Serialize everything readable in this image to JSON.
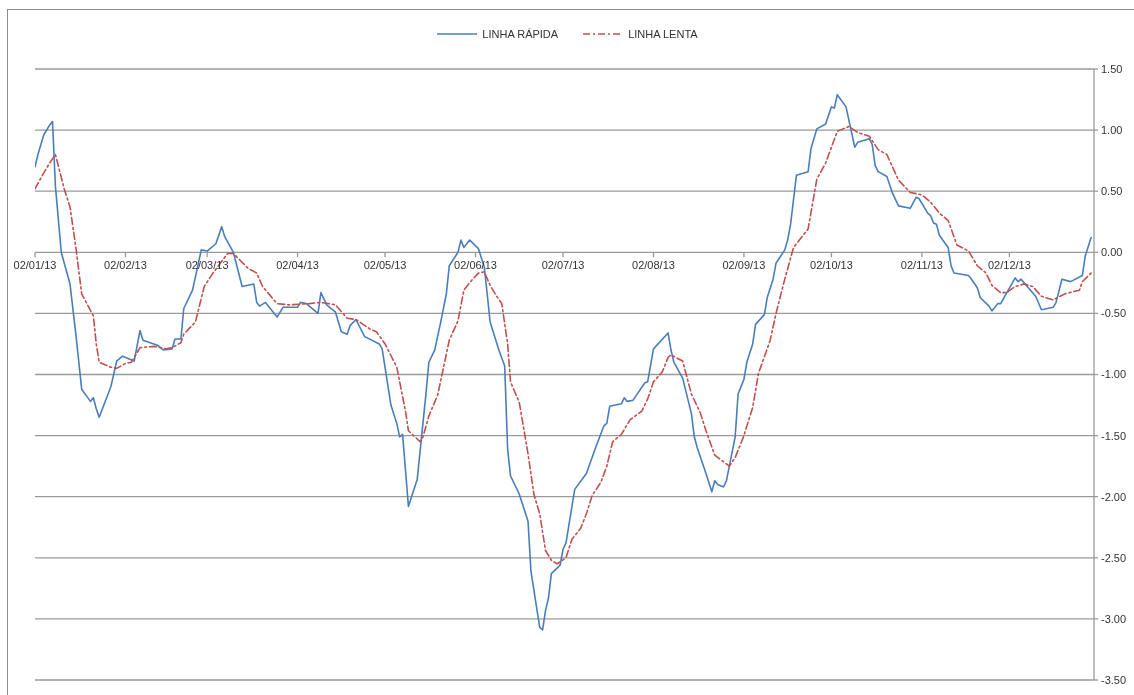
{
  "chart_data": {
    "type": "line",
    "legend": "top",
    "grid": "y",
    "xlim": [
      "2013-01-02",
      "2013-12-31"
    ],
    "xticks": [
      {
        "value": "2013-01-02",
        "label": "02/01/13"
      },
      {
        "value": "2013-02-02",
        "label": "02/02/13"
      },
      {
        "value": "2013-03-02",
        "label": "02/03/13"
      },
      {
        "value": "2013-04-02",
        "label": "02/04/13"
      },
      {
        "value": "2013-05-02",
        "label": "02/05/13"
      },
      {
        "value": "2013-06-02",
        "label": "02/06/13"
      },
      {
        "value": "2013-07-02",
        "label": "02/07/13"
      },
      {
        "value": "2013-08-02",
        "label": "02/08/13"
      },
      {
        "value": "2013-09-02",
        "label": "02/09/13"
      },
      {
        "value": "2013-10-02",
        "label": "02/10/13"
      },
      {
        "value": "2013-11-02",
        "label": "02/11/13"
      },
      {
        "value": "2013-12-02",
        "label": "02/12/13"
      }
    ],
    "ylim": [
      -3.5,
      1.5
    ],
    "yticks": [
      {
        "value": -3.5,
        "label": "-3.50"
      },
      {
        "value": -3,
        "label": "-3.00"
      },
      {
        "value": -2.5,
        "label": "-2.50"
      },
      {
        "value": -2,
        "label": "-2.00"
      },
      {
        "value": -1.5,
        "label": "-1.50"
      },
      {
        "value": -1,
        "label": "-1.00"
      },
      {
        "value": -0.5,
        "label": "-0.50"
      },
      {
        "value": 0,
        "label": "0.00"
      },
      {
        "value": 0.5,
        "label": "0.50"
      },
      {
        "value": 1,
        "label": "1.00"
      },
      {
        "value": 1.5,
        "label": "1.50"
      }
    ],
    "series": [
      {
        "name": "LINHA RÁPIDA",
        "color": "#4a7ebb",
        "line_style": "solid",
        "x": [
          "2013-01-02",
          "2013-01-03",
          "2013-01-05",
          "2013-01-07",
          "2013-01-08",
          "2013-01-09",
          "2013-01-11",
          "2013-01-14",
          "2013-01-16",
          "2013-01-18",
          "2013-01-21",
          "2013-01-22",
          "2013-01-23",
          "2013-01-24",
          "2013-01-28",
          "2013-01-30",
          "2013-02-01",
          "2013-02-05",
          "2013-02-07",
          "2013-02-08",
          "2013-02-13",
          "2013-02-15",
          "2013-02-18",
          "2013-02-19",
          "2013-02-21",
          "2013-02-22",
          "2013-02-25",
          "2013-02-28",
          "2013-03-02",
          "2013-03-05",
          "2013-03-07",
          "2013-03-08",
          "2013-03-11",
          "2013-03-14",
          "2013-03-18",
          "2013-03-19",
          "2013-03-20",
          "2013-03-22",
          "2013-03-26",
          "2013-03-28",
          "2013-04-02",
          "2013-04-03",
          "2013-04-05",
          "2013-04-09",
          "2013-04-10",
          "2013-04-12",
          "2013-04-15",
          "2013-04-17",
          "2013-04-19",
          "2013-04-20",
          "2013-04-22",
          "2013-04-25",
          "2013-04-30",
          "2013-05-01",
          "2013-05-04",
          "2013-05-06",
          "2013-05-07",
          "2013-05-08",
          "2013-05-10",
          "2013-05-13",
          "2013-05-16",
          "2013-05-17",
          "2013-05-19",
          "2013-05-21",
          "2013-05-23",
          "2013-05-24",
          "2013-05-27",
          "2013-05-28",
          "2013-05-29",
          "2013-05-31",
          "2013-06-03",
          "2013-06-05",
          "2013-06-06",
          "2013-06-07",
          "2013-06-10",
          "2013-06-12",
          "2013-06-13",
          "2013-06-14",
          "2013-06-17",
          "2013-06-20",
          "2013-06-21",
          "2013-06-24",
          "2013-06-25",
          "2013-06-26",
          "2013-06-27",
          "2013-06-28",
          "2013-07-01",
          "2013-07-02",
          "2013-07-03",
          "2013-07-06",
          "2013-07-10",
          "2013-07-13",
          "2013-07-16",
          "2013-07-17",
          "2013-07-18",
          "2013-07-22",
          "2013-07-23",
          "2013-07-24",
          "2013-07-26",
          "2013-07-30",
          "2013-07-31",
          "2013-08-02",
          "2013-08-07",
          "2013-08-08",
          "2013-08-09",
          "2013-08-12",
          "2013-08-15",
          "2013-08-16",
          "2013-08-17",
          "2013-08-20",
          "2013-08-22",
          "2013-08-23",
          "2013-08-24",
          "2013-08-26",
          "2013-08-27",
          "2013-08-30",
          "2013-08-31",
          "2013-09-02",
          "2013-09-03",
          "2013-09-05",
          "2013-09-06",
          "2013-09-09",
          "2013-09-10",
          "2013-09-12",
          "2013-09-13",
          "2013-09-16",
          "2013-09-17",
          "2013-09-18",
          "2013-09-20",
          "2013-09-24",
          "2013-09-25",
          "2013-09-27",
          "2013-09-30",
          "2013-10-02",
          "2013-10-03",
          "2013-10-04",
          "2013-10-07",
          "2013-10-10",
          "2013-10-11",
          "2013-10-15",
          "2013-10-16",
          "2013-10-17",
          "2013-10-18",
          "2013-10-21",
          "2013-10-23",
          "2013-10-25",
          "2013-10-29",
          "2013-10-31",
          "2013-11-01",
          "2013-11-04",
          "2013-11-05",
          "2013-11-06",
          "2013-11-07",
          "2013-11-08",
          "2013-11-11",
          "2013-11-12",
          "2013-11-13",
          "2013-11-18",
          "2013-11-19",
          "2013-11-21",
          "2013-11-22",
          "2013-11-25",
          "2013-11-26",
          "2013-11-28",
          "2013-11-29",
          "2013-12-04",
          "2013-12-05",
          "2013-12-06",
          "2013-12-11",
          "2013-12-13",
          "2013-12-17",
          "2013-12-18",
          "2013-12-20",
          "2013-12-23",
          "2013-12-27",
          "2013-12-28",
          "2013-12-30"
        ],
        "values": [
          0.7,
          0.8,
          0.96,
          1.04,
          1.07,
          0.54,
          0.0,
          -0.26,
          -0.67,
          -1.12,
          -1.22,
          -1.19,
          -1.28,
          -1.35,
          -1.1,
          -0.89,
          -0.85,
          -0.89,
          -0.64,
          -0.72,
          -0.76,
          -0.8,
          -0.79,
          -0.71,
          -0.71,
          -0.46,
          -0.31,
          0.02,
          0.01,
          0.07,
          0.21,
          0.13,
          0.0,
          -0.28,
          -0.26,
          -0.41,
          -0.44,
          -0.41,
          -0.53,
          -0.45,
          -0.45,
          -0.41,
          -0.42,
          -0.5,
          -0.33,
          -0.43,
          -0.49,
          -0.65,
          -0.67,
          -0.6,
          -0.55,
          -0.69,
          -0.75,
          -0.79,
          -1.25,
          -1.4,
          -1.51,
          -1.49,
          -2.08,
          -1.86,
          -1.16,
          -0.9,
          -0.8,
          -0.58,
          -0.34,
          -0.11,
          0.0,
          0.1,
          0.04,
          0.1,
          0.03,
          -0.12,
          -0.34,
          -0.57,
          -0.8,
          -0.93,
          -1.61,
          -1.83,
          -1.98,
          -2.2,
          -2.61,
          -3.07,
          -3.09,
          -2.93,
          -2.83,
          -2.63,
          -2.56,
          -2.43,
          -2.38,
          -1.94,
          -1.81,
          -1.61,
          -1.42,
          -1.4,
          -1.26,
          -1.24,
          -1.19,
          -1.22,
          -1.21,
          -1.07,
          -1.06,
          -0.79,
          -0.66,
          -0.8,
          -0.9,
          -1.03,
          -1.32,
          -1.51,
          -1.6,
          -1.81,
          -1.96,
          -1.87,
          -1.9,
          -1.92,
          -1.87,
          -1.51,
          -1.16,
          -1.04,
          -0.9,
          -0.75,
          -0.59,
          -0.51,
          -0.37,
          -0.22,
          -0.09,
          0.02,
          0.1,
          0.23,
          0.63,
          0.66,
          0.85,
          1.01,
          1.05,
          1.19,
          1.18,
          1.29,
          1.19,
          0.86,
          0.9,
          0.93,
          0.88,
          0.71,
          0.66,
          0.62,
          0.48,
          0.38,
          0.36,
          0.45,
          0.44,
          0.32,
          0.3,
          0.24,
          0.23,
          0.14,
          0.04,
          -0.11,
          -0.17,
          -0.19,
          -0.22,
          -0.29,
          -0.37,
          -0.44,
          -0.48,
          -0.42,
          -0.42,
          -0.21,
          -0.24,
          -0.22,
          -0.36,
          -0.47,
          -0.45,
          -0.41,
          -0.22,
          -0.24,
          -0.19,
          -0.03,
          0.12
        ]
      },
      {
        "name": "LINHA LENTA",
        "color": "#c0504d",
        "line_style": "dashed",
        "x": [
          "2013-01-02",
          "2013-01-05",
          "2013-01-07",
          "2013-01-09",
          "2013-01-12",
          "2013-01-14",
          "2013-01-16",
          "2013-01-18",
          "2013-01-22",
          "2013-01-23",
          "2013-01-24",
          "2013-01-28",
          "2013-01-30",
          "2013-02-02",
          "2013-02-04",
          "2013-02-07",
          "2013-02-12",
          "2013-02-16",
          "2013-02-18",
          "2013-02-21",
          "2013-02-22",
          "2013-02-26",
          "2013-03-01",
          "2013-03-04",
          "2013-03-09",
          "2013-03-11",
          "2013-03-16",
          "2013-03-19",
          "2013-03-21",
          "2013-03-26",
          "2013-03-30",
          "2013-04-06",
          "2013-04-10",
          "2013-04-15",
          "2013-04-19",
          "2013-04-22",
          "2013-04-27",
          "2013-04-29",
          "2013-05-02",
          "2013-05-06",
          "2013-05-09",
          "2013-05-10",
          "2013-05-14",
          "2013-05-15",
          "2013-05-17",
          "2013-05-20",
          "2013-05-24",
          "2013-05-27",
          "2013-05-29",
          "2013-06-01",
          "2013-06-03",
          "2013-06-05",
          "2013-06-07",
          "2013-06-09",
          "2013-06-11",
          "2013-06-13",
          "2013-06-14",
          "2013-06-17",
          "2013-06-20",
          "2013-06-22",
          "2013-06-24",
          "2013-06-26",
          "2013-06-28",
          "2013-06-30",
          "2013-07-03",
          "2013-07-05",
          "2013-07-08",
          "2013-07-10",
          "2013-07-12",
          "2013-07-15",
          "2013-07-17",
          "2013-07-19",
          "2013-07-22",
          "2013-07-25",
          "2013-07-29",
          "2013-07-31",
          "2013-08-02",
          "2013-08-05",
          "2013-08-07",
          "2013-08-08",
          "2013-08-12",
          "2013-08-15",
          "2013-08-18",
          "2013-08-20",
          "2013-08-23",
          "2013-08-28",
          "2013-08-30",
          "2013-09-02",
          "2013-09-05",
          "2013-09-07",
          "2013-09-11",
          "2013-09-13",
          "2013-09-16",
          "2013-09-19",
          "2013-09-24",
          "2013-09-27",
          "2013-09-30",
          "2013-10-04",
          "2013-10-08",
          "2013-10-11",
          "2013-10-15",
          "2013-10-18",
          "2013-10-21",
          "2013-10-25",
          "2013-10-29",
          "2013-11-02",
          "2013-11-05",
          "2013-11-08",
          "2013-11-11",
          "2013-11-14",
          "2013-11-18",
          "2013-11-21",
          "2013-11-24",
          "2013-11-26",
          "2013-11-29",
          "2013-12-01",
          "2013-12-04",
          "2013-12-07",
          "2013-12-10",
          "2013-12-13",
          "2013-12-17",
          "2013-12-21",
          "2013-12-26",
          "2013-12-27",
          "2013-12-30"
        ],
        "values": [
          0.52,
          0.65,
          0.73,
          0.8,
          0.52,
          0.37,
          0.04,
          -0.34,
          -0.52,
          -0.75,
          -0.9,
          -0.94,
          -0.95,
          -0.91,
          -0.9,
          -0.78,
          -0.77,
          -0.79,
          -0.78,
          -0.74,
          -0.67,
          -0.57,
          -0.28,
          -0.17,
          -0.01,
          -0.01,
          -0.13,
          -0.17,
          -0.28,
          -0.42,
          -0.43,
          -0.42,
          -0.41,
          -0.43,
          -0.54,
          -0.55,
          -0.63,
          -0.65,
          -0.75,
          -0.94,
          -1.3,
          -1.46,
          -1.55,
          -1.51,
          -1.34,
          -1.17,
          -0.72,
          -0.56,
          -0.31,
          -0.22,
          -0.17,
          -0.16,
          -0.27,
          -0.35,
          -0.42,
          -0.75,
          -1.06,
          -1.23,
          -1.65,
          -1.98,
          -2.14,
          -2.44,
          -2.52,
          -2.55,
          -2.5,
          -2.35,
          -2.26,
          -2.14,
          -1.99,
          -1.88,
          -1.75,
          -1.55,
          -1.49,
          -1.37,
          -1.3,
          -1.2,
          -1.06,
          -0.98,
          -0.86,
          -0.84,
          -0.89,
          -1.16,
          -1.31,
          -1.46,
          -1.66,
          -1.75,
          -1.68,
          -1.5,
          -1.27,
          -0.99,
          -0.72,
          -0.5,
          -0.22,
          0.04,
          0.19,
          0.6,
          0.73,
          0.99,
          1.03,
          0.98,
          0.95,
          0.84,
          0.8,
          0.59,
          0.49,
          0.47,
          0.41,
          0.32,
          0.26,
          0.06,
          0.01,
          -0.11,
          -0.17,
          -0.27,
          -0.33,
          -0.33,
          -0.28,
          -0.26,
          -0.28,
          -0.36,
          -0.39,
          -0.34,
          -0.31,
          -0.24,
          -0.17
        ]
      }
    ]
  }
}
